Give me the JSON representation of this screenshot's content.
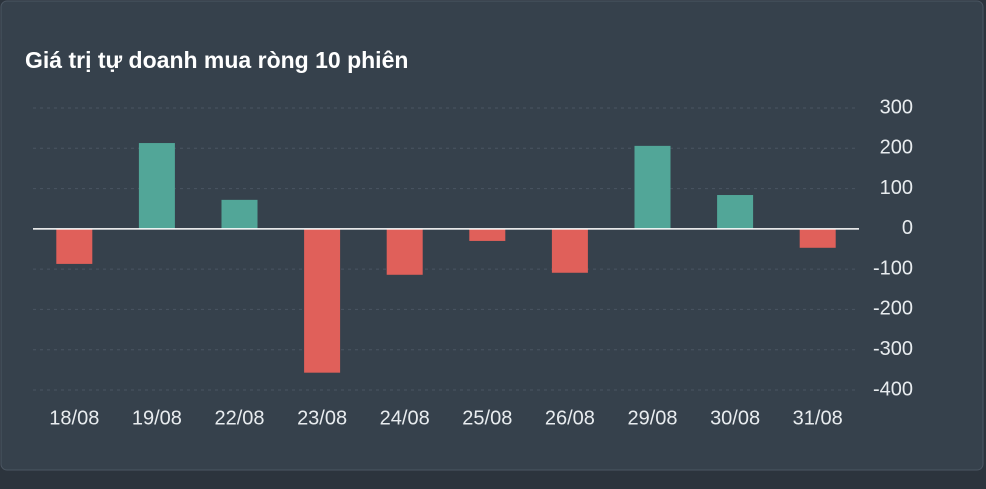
{
  "chart_data": {
    "type": "bar",
    "title": "Giá trị tự doanh mua ròng 10 phiên",
    "categories": [
      "18/08",
      "19/08",
      "22/08",
      "23/08",
      "24/08",
      "25/08",
      "26/08",
      "29/08",
      "30/08",
      "31/08"
    ],
    "values": [
      -87,
      213,
      72,
      -357,
      -114,
      -30,
      -109,
      206,
      84,
      -47
    ],
    "positive_color": "#52a698",
    "negative_color": "#e0605a",
    "ylim": [
      -400,
      300
    ],
    "yticks": [
      -400,
      -300,
      -200,
      -100,
      0,
      100,
      200,
      300
    ],
    "grid": true
  }
}
